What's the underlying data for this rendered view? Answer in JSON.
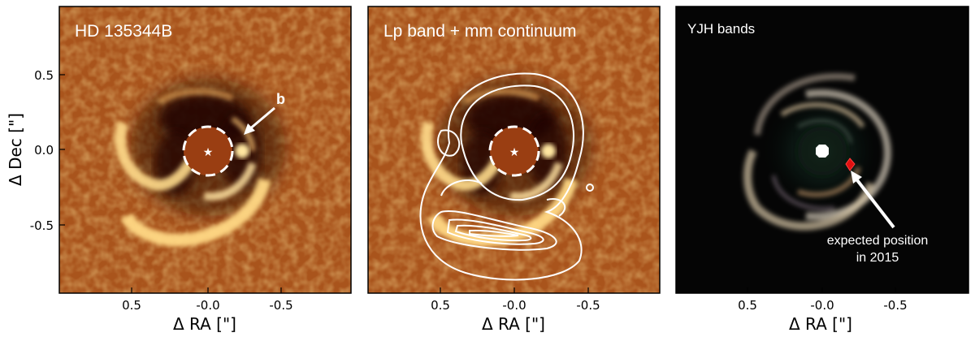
{
  "panels": [
    {
      "title": "HD 135344B",
      "xlabel": "Δ RA [\"]",
      "ylabel": "Δ Dec [\"]",
      "xticks": [
        "0.5",
        "-0.0",
        "-0.5"
      ],
      "yticks": [
        "0.5",
        "0.0",
        "-0.5"
      ],
      "annotation": "b",
      "theme": "disk-orange"
    },
    {
      "title": "Lp band + mm continuum",
      "xlabel": "Δ RA [\"]",
      "xticks": [
        "0.5",
        "-0.0",
        "-0.5"
      ],
      "theme": "disk-orange-contours"
    },
    {
      "title": "YJH bands",
      "xlabel": "Δ RA [\"]",
      "xticks": [
        "0.5",
        "-0.0",
        "-0.5"
      ],
      "annotation_line1": "expected position",
      "annotation_line2": "in 2015",
      "theme": "disk-dark",
      "marker_color": "#e01010"
    }
  ],
  "colors": {
    "orange_bg": "#a9541c",
    "dark_bg": "#050505",
    "mask": "#9a3e12"
  }
}
